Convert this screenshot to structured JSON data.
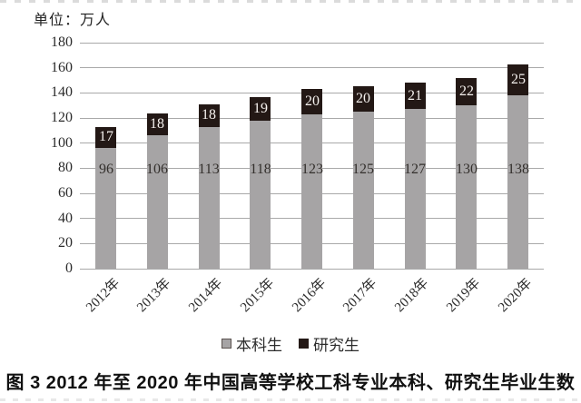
{
  "unit_label": "单位：万人",
  "chart_data": {
    "type": "bar",
    "stacked": true,
    "title": "",
    "unit": "万人",
    "categories": [
      "2012年",
      "2013年",
      "2014年",
      "2015年",
      "2016年",
      "2017年",
      "2018年",
      "2019年",
      "2020年"
    ],
    "series": [
      {
        "name": "本科生",
        "values": [
          96,
          106,
          113,
          118,
          123,
          125,
          127,
          130,
          138
        ],
        "color": "#a6a4a5",
        "label_color": "#332f2c"
      },
      {
        "name": "研究生",
        "values": [
          17,
          18,
          18,
          19,
          20,
          20,
          21,
          22,
          25
        ],
        "color": "#231815",
        "label_color": "#f6f2ef"
      }
    ],
    "totals": [
      113,
      124,
      131,
      137,
      143,
      145,
      148,
      152,
      163
    ],
    "ylim": [
      0,
      180
    ],
    "yticks": [
      0,
      20,
      40,
      60,
      80,
      100,
      120,
      140,
      160,
      180
    ],
    "grid": true,
    "gridline_color": "#a9a9a9",
    "legend_position": "bottom"
  },
  "legend": {
    "items": [
      {
        "label": "本科生",
        "color": "#a6a4a5"
      },
      {
        "label": "研究生",
        "color": "#231815"
      }
    ]
  },
  "caption": "图 3  2012 年至 2020 年中国高等学校工科专业本科、研究生毕业生数"
}
